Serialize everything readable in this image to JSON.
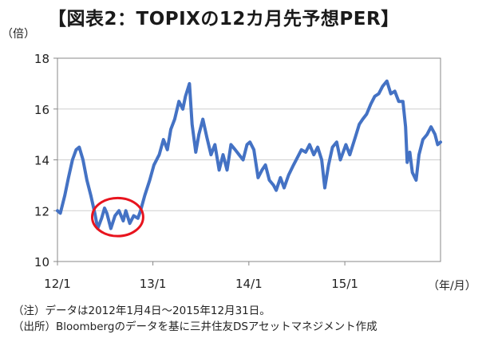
{
  "chart_data": {
    "type": "line",
    "title": "【図表2：TOPIXの12カ月先予想PER】",
    "ylabel": "（倍）",
    "xlabel": "（年/月）",
    "ylim": [
      10,
      18
    ],
    "yticks": [
      "10",
      "12",
      "14",
      "16",
      "18"
    ],
    "x_ticks": [
      "12/1",
      "13/1",
      "14/1",
      "15/1"
    ],
    "xlim": [
      "2012-01-04",
      "2015-12-31"
    ],
    "grid": true,
    "series": [
      {
        "color": "#4472c4",
        "points": [
          [
            "2012-01-04",
            12.0
          ],
          [
            "2012-01-15",
            11.9
          ],
          [
            "2012-02-01",
            12.6
          ],
          [
            "2012-02-15",
            13.3
          ],
          [
            "2012-03-01",
            14.0
          ],
          [
            "2012-03-15",
            14.4
          ],
          [
            "2012-03-27",
            14.5
          ],
          [
            "2012-04-10",
            14.0
          ],
          [
            "2012-04-25",
            13.2
          ],
          [
            "2012-05-10",
            12.6
          ],
          [
            "2012-05-25",
            11.9
          ],
          [
            "2012-06-05",
            11.3
          ],
          [
            "2012-06-20",
            11.7
          ],
          [
            "2012-07-01",
            12.1
          ],
          [
            "2012-07-10",
            11.9
          ],
          [
            "2012-07-25",
            11.3
          ],
          [
            "2012-08-10",
            11.8
          ],
          [
            "2012-08-25",
            12.0
          ],
          [
            "2012-09-10",
            11.6
          ],
          [
            "2012-09-20",
            12.0
          ],
          [
            "2012-10-05",
            11.5
          ],
          [
            "2012-10-20",
            11.8
          ],
          [
            "2012-11-05",
            11.7
          ],
          [
            "2012-11-15",
            12.0
          ],
          [
            "2012-12-01",
            12.6
          ],
          [
            "2012-12-20",
            13.2
          ],
          [
            "2013-01-05",
            13.8
          ],
          [
            "2013-01-25",
            14.2
          ],
          [
            "2013-02-10",
            14.8
          ],
          [
            "2013-02-25",
            14.4
          ],
          [
            "2013-03-10",
            15.2
          ],
          [
            "2013-03-25",
            15.6
          ],
          [
            "2013-04-10",
            16.3
          ],
          [
            "2013-04-25",
            16.0
          ],
          [
            "2013-05-05",
            16.5
          ],
          [
            "2013-05-20",
            17.0
          ],
          [
            "2013-05-30",
            15.4
          ],
          [
            "2013-06-13",
            14.3
          ],
          [
            "2013-06-25",
            15.0
          ],
          [
            "2013-07-10",
            15.6
          ],
          [
            "2013-07-25",
            14.9
          ],
          [
            "2013-08-10",
            14.2
          ],
          [
            "2013-08-25",
            14.6
          ],
          [
            "2013-09-10",
            13.6
          ],
          [
            "2013-09-25",
            14.2
          ],
          [
            "2013-10-10",
            13.6
          ],
          [
            "2013-10-25",
            14.6
          ],
          [
            "2013-11-10",
            14.4
          ],
          [
            "2013-11-25",
            14.2
          ],
          [
            "2013-12-10",
            14.0
          ],
          [
            "2013-12-25",
            14.6
          ],
          [
            "2014-01-05",
            14.7
          ],
          [
            "2014-01-20",
            14.4
          ],
          [
            "2014-02-05",
            13.3
          ],
          [
            "2014-02-20",
            13.6
          ],
          [
            "2014-03-05",
            13.8
          ],
          [
            "2014-03-20",
            13.2
          ],
          [
            "2014-04-05",
            13.0
          ],
          [
            "2014-04-15",
            12.8
          ],
          [
            "2014-05-01",
            13.3
          ],
          [
            "2014-05-15",
            12.9
          ],
          [
            "2014-06-01",
            13.4
          ],
          [
            "2014-06-20",
            13.8
          ],
          [
            "2014-07-05",
            14.1
          ],
          [
            "2014-07-20",
            14.4
          ],
          [
            "2014-08-05",
            14.3
          ],
          [
            "2014-08-20",
            14.6
          ],
          [
            "2014-09-05",
            14.2
          ],
          [
            "2014-09-20",
            14.5
          ],
          [
            "2014-10-05",
            14.0
          ],
          [
            "2014-10-17",
            12.9
          ],
          [
            "2014-10-31",
            13.8
          ],
          [
            "2014-11-15",
            14.5
          ],
          [
            "2014-12-01",
            14.7
          ],
          [
            "2014-12-15",
            14.0
          ],
          [
            "2015-01-05",
            14.6
          ],
          [
            "2015-01-20",
            14.2
          ],
          [
            "2015-02-10",
            14.9
          ],
          [
            "2015-02-25",
            15.4
          ],
          [
            "2015-03-10",
            15.6
          ],
          [
            "2015-03-25",
            15.8
          ],
          [
            "2015-04-10",
            16.2
          ],
          [
            "2015-04-25",
            16.5
          ],
          [
            "2015-05-10",
            16.6
          ],
          [
            "2015-05-25",
            16.9
          ],
          [
            "2015-06-10",
            17.1
          ],
          [
            "2015-06-25",
            16.6
          ],
          [
            "2015-07-10",
            16.7
          ],
          [
            "2015-07-25",
            16.3
          ],
          [
            "2015-08-10",
            16.3
          ],
          [
            "2015-08-20",
            15.3
          ],
          [
            "2015-08-26",
            13.9
          ],
          [
            "2015-09-05",
            14.3
          ],
          [
            "2015-09-15",
            13.5
          ],
          [
            "2015-09-29",
            13.2
          ],
          [
            "2015-10-10",
            14.2
          ],
          [
            "2015-10-25",
            14.8
          ],
          [
            "2015-11-10",
            15.0
          ],
          [
            "2015-11-25",
            15.3
          ],
          [
            "2015-12-10",
            15.0
          ],
          [
            "2015-12-20",
            14.6
          ],
          [
            "2015-12-31",
            14.7
          ]
        ]
      }
    ],
    "annotations": [
      {
        "type": "ellipse",
        "color": "#e8141e",
        "x_range": [
          "2012-05-15",
          "2012-11-25"
        ],
        "y_range": [
          11.0,
          12.5
        ]
      }
    ]
  },
  "notes": [
    "（注）データは2012年1月4日～2015年12月31日。",
    "（出所）Bloombergのデータを基に三井住友DSアセットマネジメント作成"
  ]
}
